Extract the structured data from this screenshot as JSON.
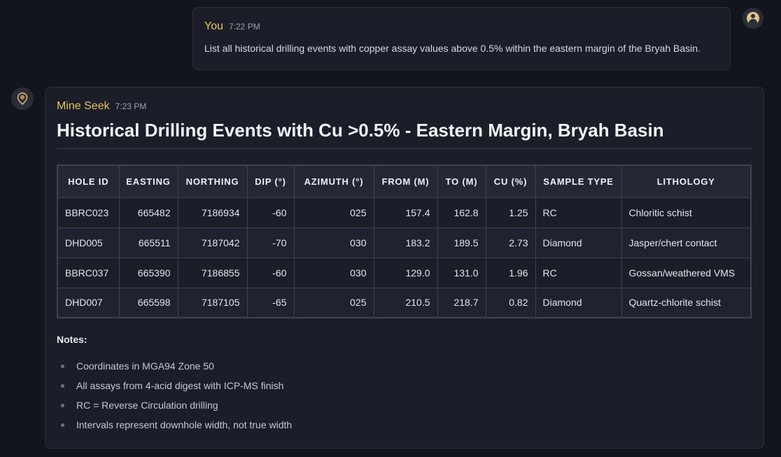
{
  "user_message": {
    "author": "You",
    "time": "7:22 PM",
    "text": "List all historical drilling events with copper assay values above 0.5% within the eastern margin of the Bryah Basin."
  },
  "bot_message": {
    "author": "Mine Seek",
    "time": "7:23 PM",
    "title": "Historical Drilling Events with Cu >0.5% - Eastern Margin, Bryah Basin",
    "table": {
      "headers": [
        "HOLE ID",
        "EASTING",
        "NORTHING",
        "DIP (°)",
        "AZIMUTH (°)",
        "FROM (M)",
        "TO (M)",
        "CU (%)",
        "SAMPLE TYPE",
        "LITHOLOGY"
      ],
      "rows": [
        [
          "BBRC023",
          "665482",
          "7186934",
          "-60",
          "025",
          "157.4",
          "162.8",
          "1.25",
          "RC",
          "Chloritic schist"
        ],
        [
          "DHD005",
          "665511",
          "7187042",
          "-70",
          "030",
          "183.2",
          "189.5",
          "2.73",
          "Diamond",
          "Jasper/chert contact"
        ],
        [
          "BBRC037",
          "665390",
          "7186855",
          "-60",
          "030",
          "129.0",
          "131.0",
          "1.96",
          "RC",
          "Gossan/weathered VMS"
        ],
        [
          "DHD007",
          "665598",
          "7187105",
          "-65",
          "025",
          "210.5",
          "218.7",
          "0.82",
          "Diamond",
          "Quartz-chlorite schist"
        ]
      ]
    },
    "notes_label": "Notes:",
    "notes": [
      "Coordinates in MGA94 Zone 50",
      "All assays from 4-acid digest with ICP-MS finish",
      "RC = Reverse Circulation drilling",
      "Intervals represent downhole width, not true width"
    ]
  },
  "icons": {
    "user_avatar": "user-icon",
    "bot_avatar": "map-pin-icon"
  },
  "colors": {
    "accent": "#e8c35a",
    "background": "#13151d",
    "card": "#1b1e29"
  }
}
